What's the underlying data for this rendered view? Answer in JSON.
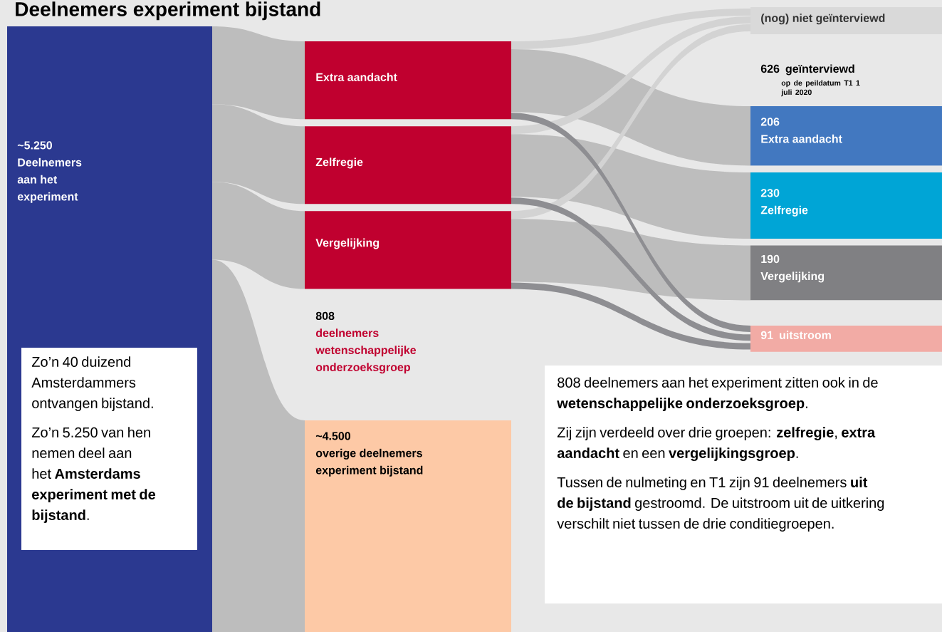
{
  "chart_data": {
    "type": "other",
    "title": "Deelnemers experiment bijstand",
    "categories": [
      "Deelnemers aan het experiment",
      "Extra aandacht",
      "Zelfregie",
      "Vergelijking",
      "deelnemers wetenschappelijke onderzoeksgroep",
      "overige deelnemers experiment bijstand",
      "(nog) niet geïnterviewd",
      "geïnterviewd",
      "Extra aandacht",
      "Zelfregie",
      "Vergelijking",
      "uitstroom"
    ],
    "values": [
      5250,
      null,
      null,
      null,
      808,
      4500,
      null,
      626,
      206,
      230,
      190,
      91
    ],
    "value_labels": [
      "~5.250",
      null,
      null,
      null,
      "808",
      "~4.500",
      null,
      "626",
      "206",
      "230",
      "190",
      "91"
    ],
    "colors": [
      "#2b3990",
      "#c0002f",
      "#c0002f",
      "#c0002f",
      "#c0002f",
      "#fdc9a6",
      "#d9d9d9",
      "#000000",
      "#4278c0",
      "#00a5d6",
      "#808083",
      "#f2aba5"
    ],
    "annotations": [
      "op de peildatum T1 1 juli 2020",
      "Zo’n 40 duizend Amsterdammers ontvangen bijstand.",
      "Zo’n 5.250 van hen nemen deel aan het **Amsterdams experiment met de bijstand**.",
      "808 deelnemers aan het experiment zitten ook in de **wetenschappelijke onderzoeksgroep**.",
      "Zij zijn verdeeld over drie groepen: **zelfregie**, **extra aandacht** en een **vergelijkingsgroep**.",
      "Tussen de nulmeting en T1 zijn 91 deelnemers **uit de bijstand** gestroomd. De uitstroom uit de uitkering verschilt niet tussen de drie conditiegroepen."
    ]
  }
}
